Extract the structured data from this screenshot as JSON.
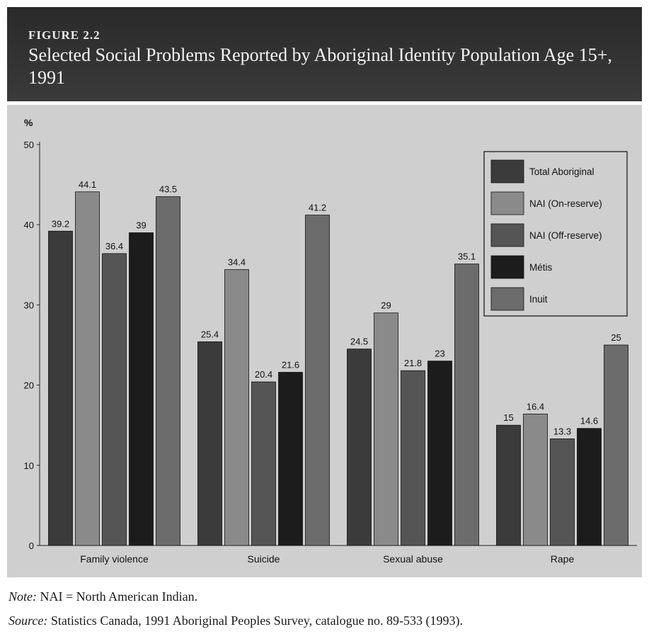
{
  "figure_label": "FIGURE 2.2",
  "title": "Selected Social Problems Reported by Aboriginal Identity Population Age 15+, 1991",
  "note_label": "Note:",
  "note_text": " NAI = North American Indian.",
  "source_label": "Source:",
  "source_text": " Statistics Canada, 1991 Aboriginal Peoples Survey, catalogue no. 89-533 (1993).",
  "colors": {
    "total_aboriginal": "#3b3b3b",
    "nai_on": "#8a8a8a",
    "nai_off": "#555555",
    "metis": "#1c1c1c",
    "inuit": "#6c6c6c",
    "panel": "#cfcfcf"
  },
  "chart_data": {
    "type": "bar",
    "ylabel": "%",
    "ylim": [
      0,
      50
    ],
    "yticks": [
      "0",
      "10",
      "20",
      "30",
      "40",
      "50"
    ],
    "grid": false,
    "legend_position": "top-right",
    "categories": [
      "Family violence",
      "Suicide",
      "Sexual abuse",
      "Rape"
    ],
    "series": [
      {
        "name": "Total Aboriginal",
        "values": [
          39.2,
          25.4,
          24.5,
          15
        ],
        "labels": [
          "39.2",
          "25.4",
          "24.5",
          "15"
        ]
      },
      {
        "name": "NAI (On-reserve)",
        "values": [
          44.1,
          34.4,
          29,
          16.4
        ],
        "labels": [
          "44.1",
          "34.4",
          "29",
          "16.4"
        ]
      },
      {
        "name": "NAI (Off-reserve)",
        "values": [
          36.4,
          20.4,
          21.8,
          13.3
        ],
        "labels": [
          "36.4",
          "20.4",
          "21.8",
          "13.3"
        ]
      },
      {
        "name": "Métis",
        "values": [
          39,
          21.6,
          23,
          14.6
        ],
        "labels": [
          "39",
          "21.6",
          "23",
          "14.6"
        ]
      },
      {
        "name": "Inuit",
        "values": [
          43.5,
          41.2,
          35.1,
          25
        ],
        "labels": [
          "43.5",
          "41.2",
          "35.1",
          "25"
        ]
      }
    ]
  }
}
